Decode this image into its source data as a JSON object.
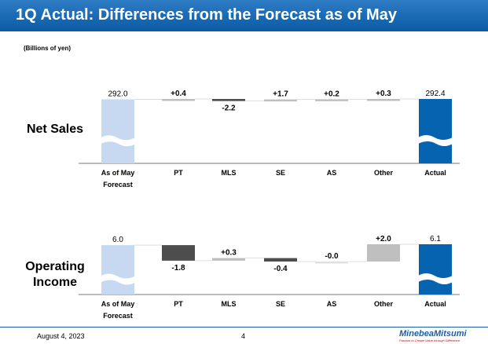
{
  "header": {
    "title": "1Q Actual: Differences from the Forecast as of May"
  },
  "unit_label": "(Billions of yen)",
  "footer": {
    "date": "August 4, 2023",
    "page": "4",
    "logo": "MinebeaMitsumi",
    "tagline": "Passion to Create Value through Difference"
  },
  "colors": {
    "forecast": "#c6d9f0",
    "actual": "#0563b0",
    "negative": "#4d4d4d",
    "positive": "#bfbfbf",
    "title_bar": "#0a5aa5"
  },
  "chart_data": [
    {
      "type": "bar",
      "subtype": "waterfall",
      "row_label": "Net Sales",
      "categories": [
        "As of May\nForecast",
        "PT",
        "MLS",
        "SE",
        "AS",
        "Other",
        "Actual"
      ],
      "category_lines": [
        [
          "As of May",
          "Forecast"
        ],
        [
          "PT"
        ],
        [
          "MLS"
        ],
        [
          "SE"
        ],
        [
          "AS"
        ],
        [
          "Other"
        ],
        [
          "Actual"
        ]
      ],
      "values": [
        292.0,
        0.4,
        -2.2,
        1.7,
        0.2,
        0.3,
        292.4
      ],
      "data_labels": [
        "292.0",
        "+0.4",
        "-2.2",
        "+1.7",
        "+0.2",
        "+0.3",
        "292.4"
      ],
      "axis_break": true
    },
    {
      "type": "bar",
      "subtype": "waterfall",
      "row_label": "Operating\nIncome",
      "row_label_lines": [
        "Operating",
        "Income"
      ],
      "categories": [
        "As of May\nForecast",
        "PT",
        "MLS",
        "SE",
        "AS",
        "Other",
        "Actual"
      ],
      "category_lines": [
        [
          "As of May",
          "Forecast"
        ],
        [
          "PT"
        ],
        [
          "MLS"
        ],
        [
          "SE"
        ],
        [
          "AS"
        ],
        [
          "Other"
        ],
        [
          "Actual"
        ]
      ],
      "values": [
        6.0,
        -1.8,
        0.3,
        -0.4,
        -0.0,
        2.0,
        6.1
      ],
      "data_labels": [
        "6.0",
        "-1.8",
        "+0.3",
        "-0.4",
        "-0.0",
        "+2.0",
        "6.1"
      ],
      "axis_break": true
    }
  ]
}
